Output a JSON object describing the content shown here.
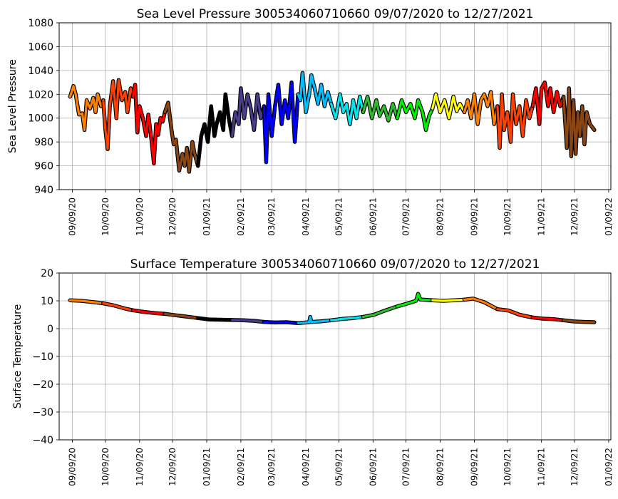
{
  "figure": {
    "background": "#ffffff",
    "gridColor": "#b0b0b0"
  },
  "chart_data": [
    {
      "type": "line",
      "title": "Sea Level Pressure 300534060710660  09/07/2020 to 12/27/2021",
      "xlabel": "",
      "ylabel": "Sea Level Pressure",
      "ylim": [
        940,
        1080
      ],
      "yticks": [
        940,
        960,
        980,
        1000,
        1020,
        1040,
        1060,
        1080
      ],
      "xlim": [
        "2020-08-28",
        "2022-01-11"
      ],
      "xticks": [
        "09/09/20",
        "10/09/20",
        "11/09/20",
        "12/09/20",
        "01/09/21",
        "02/09/21",
        "03/09/21",
        "04/09/21",
        "05/09/21",
        "06/09/21",
        "07/09/21",
        "08/09/21",
        "09/09/21",
        "10/09/21",
        "11/09/21",
        "12/09/21",
        "01/09/22"
      ],
      "xtick_dates": [
        "2020-09-09",
        "2020-10-09",
        "2020-11-09",
        "2020-12-09",
        "2021-01-09",
        "2021-02-09",
        "2021-03-09",
        "2021-04-09",
        "2021-05-09",
        "2021-06-09",
        "2021-07-09",
        "2021-08-09",
        "2021-09-09",
        "2021-10-09",
        "2021-11-09",
        "2021-12-09",
        "2022-01-09"
      ],
      "grid": true,
      "series": [
        {
          "color": "#ff8000",
          "x": [
            "2020-09-07",
            "2020-09-10",
            "2020-09-12",
            "2020-09-15",
            "2020-09-18",
            "2020-09-20",
            "2020-09-22",
            "2020-09-25",
            "2020-09-28",
            "2020-09-30",
            "2020-10-02",
            "2020-10-05",
            "2020-10-07"
          ],
          "y": [
            1018,
            1027,
            1020,
            1003,
            1004,
            990,
            1015,
            1008,
            1017,
            1005,
            1020,
            1010,
            1015
          ]
        },
        {
          "color": "#ff4000",
          "x": [
            "2020-10-07",
            "2020-10-09",
            "2020-10-11",
            "2020-10-13",
            "2020-10-16",
            "2020-10-19",
            "2020-10-21",
            "2020-10-24",
            "2020-10-27",
            "2020-10-29",
            "2020-11-01",
            "2020-11-03"
          ],
          "y": [
            1015,
            990,
            974,
            1010,
            1031,
            1000,
            1032,
            1015,
            1022,
            1005,
            1025,
            1018
          ]
        },
        {
          "color": "#ff0000",
          "x": [
            "2020-11-03",
            "2020-11-05",
            "2020-11-07",
            "2020-11-09",
            "2020-11-12",
            "2020-11-15",
            "2020-11-17",
            "2020-11-20",
            "2020-11-22",
            "2020-11-24",
            "2020-11-26",
            "2020-11-28",
            "2020-11-30",
            "2020-12-02"
          ],
          "y": [
            1018,
            1028,
            988,
            1010,
            1000,
            985,
            1003,
            980,
            962,
            995,
            986,
            1000,
            997,
            1005
          ]
        },
        {
          "color": "#8b4513",
          "x": [
            "2020-12-02",
            "2020-12-05",
            "2020-12-08",
            "2020-12-10",
            "2020-12-12",
            "2020-12-15",
            "2020-12-18",
            "2020-12-20",
            "2020-12-22",
            "2020-12-24",
            "2020-12-27",
            "2020-12-29",
            "2021-01-01"
          ],
          "y": [
            1005,
            1013,
            990,
            978,
            982,
            956,
            970,
            960,
            975,
            955,
            980,
            970,
            960
          ]
        },
        {
          "color": "#000000",
          "x": [
            "2021-01-01",
            "2021-01-04",
            "2021-01-07",
            "2021-01-10",
            "2021-01-13",
            "2021-01-16",
            "2021-01-18",
            "2021-01-21",
            "2021-01-24",
            "2021-01-26",
            "2021-01-29",
            "2021-02-01"
          ],
          "y": [
            960,
            985,
            995,
            980,
            1010,
            985,
            995,
            1005,
            990,
            1020,
            1000,
            985
          ]
        },
        {
          "color": "#483d8b",
          "x": [
            "2021-02-01",
            "2021-02-04",
            "2021-02-07",
            "2021-02-09",
            "2021-02-12",
            "2021-02-15",
            "2021-02-18",
            "2021-02-21",
            "2021-02-24",
            "2021-02-27",
            "2021-03-02"
          ],
          "y": [
            985,
            1005,
            995,
            1025,
            1000,
            1020,
            1008,
            990,
            1020,
            1000,
            1010
          ]
        },
        {
          "color": "#0000ff",
          "x": [
            "2021-03-02",
            "2021-03-04",
            "2021-03-06",
            "2021-03-09",
            "2021-03-12",
            "2021-03-15",
            "2021-03-18",
            "2021-03-21",
            "2021-03-24",
            "2021-03-27",
            "2021-03-30",
            "2021-04-02"
          ],
          "y": [
            1010,
            963,
            1020,
            985,
            1010,
            1028,
            995,
            1015,
            1000,
            1030,
            980,
            1020
          ]
        },
        {
          "color": "#00bfff",
          "x": [
            "2021-04-02",
            "2021-04-04",
            "2021-04-06",
            "2021-04-09",
            "2021-04-12",
            "2021-04-14",
            "2021-04-17",
            "2021-04-20",
            "2021-04-23",
            "2021-04-26",
            "2021-04-29",
            "2021-05-02"
          ],
          "y": [
            1020,
            1015,
            1038,
            1005,
            1020,
            1036,
            1025,
            1012,
            1028,
            1010,
            1022,
            1012
          ]
        },
        {
          "color": "#00e5ee",
          "x": [
            "2021-05-02",
            "2021-05-06",
            "2021-05-10",
            "2021-05-13",
            "2021-05-16",
            "2021-05-19",
            "2021-05-22",
            "2021-05-25",
            "2021-05-28",
            "2021-05-31"
          ],
          "y": [
            1012,
            1000,
            1020,
            1005,
            1012,
            995,
            1015,
            1000,
            1018,
            1005
          ]
        },
        {
          "color": "#2ebd2e",
          "x": [
            "2021-05-31",
            "2021-06-04",
            "2021-06-08",
            "2021-06-12",
            "2021-06-15",
            "2021-06-19",
            "2021-06-23",
            "2021-06-27",
            "2021-07-01"
          ],
          "y": [
            1005,
            1018,
            1000,
            1015,
            1002,
            1010,
            998,
            1012,
            1000
          ]
        },
        {
          "color": "#00ee00",
          "x": [
            "2021-07-01",
            "2021-07-05",
            "2021-07-09",
            "2021-07-13",
            "2021-07-17",
            "2021-07-20",
            "2021-07-24",
            "2021-07-27",
            "2021-07-30",
            "2021-08-02"
          ],
          "y": [
            1000,
            1015,
            1005,
            1012,
            1000,
            1015,
            1005,
            990,
            1002,
            1008
          ]
        },
        {
          "color": "#ffff00",
          "x": [
            "2021-08-02",
            "2021-08-05",
            "2021-08-09",
            "2021-08-13",
            "2021-08-17",
            "2021-08-21",
            "2021-08-24",
            "2021-08-27",
            "2021-08-31"
          ],
          "y": [
            1008,
            1020,
            1005,
            1015,
            1000,
            1018,
            1006,
            1012,
            1005
          ]
        },
        {
          "color": "#ff8000",
          "x": [
            "2021-08-31",
            "2021-09-03",
            "2021-09-06",
            "2021-09-09",
            "2021-09-12",
            "2021-09-15",
            "2021-09-18",
            "2021-09-21",
            "2021-09-24",
            "2021-09-27",
            "2021-09-30"
          ],
          "y": [
            1005,
            1015,
            1000,
            1020,
            995,
            1015,
            1020,
            1010,
            1022,
            995,
            1010
          ]
        },
        {
          "color": "#ff4000",
          "x": [
            "2021-09-30",
            "2021-10-02",
            "2021-10-04",
            "2021-10-06",
            "2021-10-09",
            "2021-10-12",
            "2021-10-14",
            "2021-10-17",
            "2021-10-20",
            "2021-10-23",
            "2021-10-26",
            "2021-10-29",
            "2021-11-01"
          ],
          "y": [
            1010,
            975,
            1020,
            990,
            1005,
            980,
            1020,
            995,
            1010,
            985,
            1015,
            1000,
            1010
          ]
        },
        {
          "color": "#ff0000",
          "x": [
            "2021-11-01",
            "2021-11-04",
            "2021-11-07",
            "2021-11-09",
            "2021-11-12",
            "2021-11-15",
            "2021-11-17",
            "2021-11-20",
            "2021-11-23",
            "2021-11-26",
            "2021-11-29"
          ],
          "y": [
            1010,
            1025,
            995,
            1025,
            1030,
            1010,
            1025,
            1005,
            1022,
            1010,
            1018
          ]
        },
        {
          "color": "#8b4513",
          "x": [
            "2021-11-29",
            "2021-12-02",
            "2021-12-04",
            "2021-12-06",
            "2021-12-08",
            "2021-12-10",
            "2021-12-12",
            "2021-12-14",
            "2021-12-16",
            "2021-12-18",
            "2021-12-20",
            "2021-12-23",
            "2021-12-27"
          ],
          "y": [
            1018,
            975,
            1025,
            968,
            1015,
            970,
            1005,
            985,
            1010,
            978,
            1005,
            995,
            990
          ]
        }
      ]
    },
    {
      "type": "line",
      "title": "Surface Temperature 300534060710660  09/07/2020 to 12/27/2021",
      "xlabel": "",
      "ylabel": "Surface Temperature",
      "ylim": [
        -40,
        20
      ],
      "yticks": [
        -40,
        -30,
        -20,
        -10,
        0,
        10,
        20
      ],
      "xlim": [
        "2020-08-28",
        "2022-01-11"
      ],
      "xticks": [
        "09/09/20",
        "10/09/20",
        "11/09/20",
        "12/09/20",
        "01/09/21",
        "02/09/21",
        "03/09/21",
        "04/09/21",
        "05/09/21",
        "06/09/21",
        "07/09/21",
        "08/09/21",
        "09/09/21",
        "10/09/21",
        "11/09/21",
        "12/09/21",
        "01/09/22"
      ],
      "xtick_dates": [
        "2020-09-09",
        "2020-10-09",
        "2020-11-09",
        "2020-12-09",
        "2021-01-09",
        "2021-02-09",
        "2021-03-09",
        "2021-04-09",
        "2021-05-09",
        "2021-06-09",
        "2021-07-09",
        "2021-08-09",
        "2021-09-09",
        "2021-10-09",
        "2021-11-09",
        "2021-12-09",
        "2022-01-09"
      ],
      "grid": true,
      "series": [
        {
          "color": "#ff8000",
          "x": [
            "2020-09-07",
            "2020-09-17",
            "2020-09-27",
            "2020-10-07"
          ],
          "y": [
            10.2,
            10.0,
            9.6,
            9.1
          ]
        },
        {
          "color": "#ff4000",
          "x": [
            "2020-10-07",
            "2020-10-17",
            "2020-10-27",
            "2020-11-03"
          ],
          "y": [
            9.1,
            8.3,
            7.2,
            6.6
          ]
        },
        {
          "color": "#ff0000",
          "x": [
            "2020-11-03",
            "2020-11-13",
            "2020-11-23",
            "2020-12-02"
          ],
          "y": [
            6.6,
            6.0,
            5.6,
            5.3
          ]
        },
        {
          "color": "#8b4513",
          "x": [
            "2020-12-02",
            "2020-12-12",
            "2020-12-22",
            "2021-01-01"
          ],
          "y": [
            5.3,
            4.8,
            4.3,
            3.8
          ]
        },
        {
          "color": "#000000",
          "x": [
            "2021-01-01",
            "2021-01-11",
            "2021-01-21",
            "2021-02-01"
          ],
          "y": [
            3.8,
            3.3,
            3.2,
            3.1
          ]
        },
        {
          "color": "#483d8b",
          "x": [
            "2021-02-01",
            "2021-02-11",
            "2021-02-21",
            "2021-03-02"
          ],
          "y": [
            3.1,
            3.0,
            2.8,
            2.4
          ]
        },
        {
          "color": "#0000ff",
          "x": [
            "2021-03-02",
            "2021-03-12",
            "2021-03-22",
            "2021-04-02"
          ],
          "y": [
            2.4,
            2.2,
            2.3,
            2.0
          ]
        },
        {
          "color": "#00bfff",
          "x": [
            "2021-04-02",
            "2021-04-12",
            "2021-04-13",
            "2021-04-14",
            "2021-04-22",
            "2021-05-02"
          ],
          "y": [
            2.0,
            2.3,
            4.2,
            2.4,
            2.6,
            3.0
          ]
        },
        {
          "color": "#00e5ee",
          "x": [
            "2021-05-02",
            "2021-05-12",
            "2021-05-22",
            "2021-05-31"
          ],
          "y": [
            3.0,
            3.5,
            3.8,
            4.2
          ]
        },
        {
          "color": "#2ebd2e",
          "x": [
            "2021-05-31",
            "2021-06-10",
            "2021-06-20",
            "2021-07-01"
          ],
          "y": [
            4.2,
            5.0,
            6.5,
            8.0
          ]
        },
        {
          "color": "#00ee00",
          "x": [
            "2021-07-01",
            "2021-07-10",
            "2021-07-18",
            "2021-07-20",
            "2021-07-22",
            "2021-08-02"
          ],
          "y": [
            8.0,
            9.0,
            10.0,
            12.5,
            10.5,
            10.2
          ]
        },
        {
          "color": "#ffff00",
          "x": [
            "2021-08-02",
            "2021-08-12",
            "2021-08-22",
            "2021-08-31"
          ],
          "y": [
            10.2,
            10.0,
            10.2,
            10.4
          ]
        },
        {
          "color": "#ff8000",
          "x": [
            "2021-08-31",
            "2021-09-08",
            "2021-09-18",
            "2021-09-30"
          ],
          "y": [
            10.4,
            10.8,
            9.5,
            7.0
          ]
        },
        {
          "color": "#ff4000",
          "x": [
            "2021-09-30",
            "2021-10-10",
            "2021-10-20",
            "2021-11-01"
          ],
          "y": [
            7.0,
            6.5,
            5.0,
            4.0
          ]
        },
        {
          "color": "#ff0000",
          "x": [
            "2021-11-01",
            "2021-11-10",
            "2021-11-20",
            "2021-11-29"
          ],
          "y": [
            4.0,
            3.6,
            3.4,
            3.0
          ]
        },
        {
          "color": "#8b4513",
          "x": [
            "2021-11-29",
            "2021-12-08",
            "2021-12-18",
            "2021-12-27"
          ],
          "y": [
            3.0,
            2.6,
            2.4,
            2.3
          ]
        }
      ]
    }
  ]
}
